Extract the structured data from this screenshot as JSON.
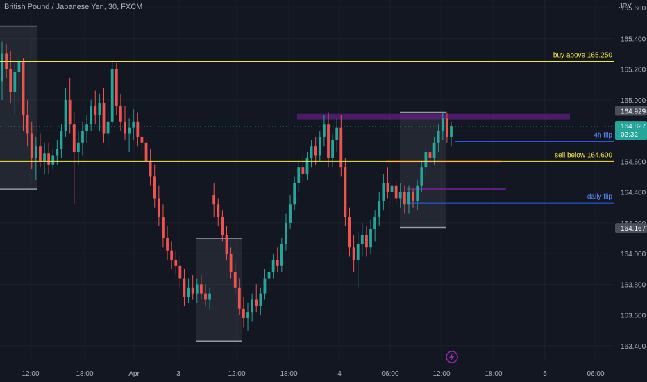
{
  "header": {
    "symbol_title": "British Pound / Japanese Yen, 30, FXCM",
    "currency": "JPY"
  },
  "colors": {
    "background": "#131722",
    "grid": "#1e222d",
    "up": "#26a69a",
    "down": "#ef5350",
    "yellow_line": "#f5e640",
    "blue_line": "#2962ff",
    "purple_zone": "#7b1fa2",
    "axis_text": "#b2b5be"
  },
  "chart_data": {
    "type": "candlestick",
    "timeframe": "30",
    "ylim": [
      163.3,
      165.65
    ],
    "y_ticks": [
      "165.600",
      "165.400",
      "165.200",
      "165.000",
      "164.800",
      "164.600",
      "164.400",
      "164.200",
      "164.000",
      "163.800",
      "163.600",
      "163.400"
    ],
    "x_ticks": [
      "12:00",
      "18:00",
      "Apr",
      "3",
      "12:00",
      "18:00",
      "4",
      "06:00",
      "12:00",
      "18:00",
      "5",
      "06:00"
    ],
    "price_labels": {
      "high_marker": "164.929",
      "current_price": "164.827",
      "countdown": "02:32",
      "low_marker": "164.167"
    },
    "levels": [
      {
        "label": "buy above 165.250",
        "price": 165.25,
        "color": "yellow"
      },
      {
        "label": "sell below 164.600",
        "price": 164.6,
        "color": "yellow"
      },
      {
        "label": "4h flip",
        "price": 164.73,
        "color": "blue"
      },
      {
        "label": "daily flip",
        "price": 164.33,
        "color": "blue"
      }
    ],
    "zones": [
      {
        "kind": "purple-resistance",
        "low": 164.87,
        "high": 164.91
      },
      {
        "kind": "purple-thin",
        "price": 164.42
      },
      {
        "kind": "red-thin",
        "price": 164.6
      }
    ],
    "range_boxes": [
      {
        "high": 165.48,
        "low": 164.42
      },
      {
        "high": 164.1,
        "low": 163.43
      },
      {
        "high": 164.92,
        "low": 164.17
      }
    ],
    "candles": [
      [
        165.12,
        165.38,
        165.0,
        165.3
      ],
      [
        165.3,
        165.36,
        165.14,
        165.2
      ],
      [
        165.2,
        165.32,
        164.98,
        165.05
      ],
      [
        165.05,
        165.24,
        164.9,
        165.18
      ],
      [
        165.18,
        165.28,
        165.0,
        165.25
      ],
      [
        165.25,
        165.27,
        164.8,
        164.9
      ],
      [
        164.9,
        165.0,
        164.7,
        164.78
      ],
      [
        164.78,
        164.86,
        164.55,
        164.62
      ],
      [
        164.62,
        164.76,
        164.48,
        164.7
      ],
      [
        164.7,
        164.78,
        164.56,
        164.6
      ],
      [
        164.6,
        164.72,
        164.52,
        164.65
      ],
      [
        164.65,
        164.72,
        164.52,
        164.58
      ],
      [
        164.58,
        164.68,
        164.55,
        164.64
      ],
      [
        164.64,
        164.74,
        164.58,
        164.68
      ],
      [
        164.68,
        164.84,
        164.62,
        164.8
      ],
      [
        164.8,
        165.08,
        164.76,
        165.0
      ],
      [
        165.0,
        165.14,
        164.78,
        164.84
      ],
      [
        164.84,
        164.92,
        164.32,
        164.66
      ],
      [
        164.66,
        164.8,
        164.58,
        164.72
      ],
      [
        164.72,
        164.86,
        164.64,
        164.8
      ],
      [
        164.8,
        164.9,
        164.72,
        164.84
      ],
      [
        164.84,
        165.0,
        164.8,
        164.96
      ],
      [
        164.96,
        165.06,
        164.84,
        164.9
      ],
      [
        164.9,
        165.04,
        164.8,
        164.98
      ],
      [
        164.98,
        165.08,
        164.72,
        164.78
      ],
      [
        164.78,
        164.92,
        164.68,
        164.86
      ],
      [
        164.86,
        165.26,
        164.84,
        165.2
      ],
      [
        165.2,
        165.24,
        164.9,
        164.96
      ],
      [
        164.96,
        165.04,
        164.8,
        164.86
      ],
      [
        164.86,
        164.96,
        164.74,
        164.78
      ],
      [
        164.78,
        164.88,
        164.66,
        164.82
      ],
      [
        164.82,
        164.94,
        164.74,
        164.86
      ],
      [
        164.86,
        164.92,
        164.7,
        164.76
      ],
      [
        164.76,
        164.84,
        164.64,
        164.72
      ],
      [
        164.72,
        164.8,
        164.56,
        164.6
      ],
      [
        164.6,
        164.68,
        164.44,
        164.5
      ],
      [
        164.5,
        164.58,
        164.3,
        164.36
      ],
      [
        164.36,
        164.44,
        164.18,
        164.24
      ],
      [
        164.24,
        164.32,
        164.04,
        164.1
      ],
      [
        164.1,
        164.18,
        163.96,
        164.02
      ],
      [
        164.02,
        164.08,
        163.9,
        163.96
      ],
      [
        163.96,
        164.02,
        163.86,
        163.92
      ],
      [
        163.92,
        163.98,
        163.78,
        163.84
      ],
      [
        163.84,
        163.9,
        163.66,
        163.72
      ],
      [
        163.72,
        163.84,
        163.68,
        163.78
      ],
      [
        163.78,
        163.86,
        163.7,
        163.74
      ],
      [
        163.74,
        163.84,
        163.68,
        163.8
      ],
      [
        163.8,
        163.86,
        163.7,
        163.74
      ],
      [
        163.74,
        163.8,
        163.66,
        163.7
      ],
      [
        163.7,
        163.78,
        163.64,
        163.74
      ],
      [
        164.38,
        164.46,
        164.24,
        164.32
      ],
      [
        164.32,
        164.36,
        164.18,
        164.24
      ],
      [
        164.24,
        164.28,
        164.08,
        164.12
      ],
      [
        164.12,
        164.18,
        163.96,
        164.0
      ],
      [
        164.0,
        164.04,
        163.84,
        163.88
      ],
      [
        163.88,
        163.94,
        163.74,
        163.78
      ],
      [
        163.78,
        163.84,
        163.6,
        163.64
      ],
      [
        163.64,
        163.72,
        163.52,
        163.58
      ],
      [
        163.58,
        163.68,
        163.5,
        163.62
      ],
      [
        163.62,
        163.74,
        163.56,
        163.7
      ],
      [
        163.7,
        163.8,
        163.62,
        163.66
      ],
      [
        163.66,
        163.78,
        163.6,
        163.74
      ],
      [
        163.74,
        163.9,
        163.7,
        163.84
      ],
      [
        163.84,
        163.94,
        163.78,
        163.88
      ],
      [
        163.88,
        164.0,
        163.84,
        163.96
      ],
      [
        163.96,
        164.04,
        163.88,
        163.92
      ],
      [
        163.92,
        164.1,
        163.88,
        164.06
      ],
      [
        164.06,
        164.26,
        164.02,
        164.2
      ],
      [
        164.2,
        164.38,
        164.16,
        164.32
      ],
      [
        164.32,
        164.5,
        164.28,
        164.46
      ],
      [
        164.46,
        164.6,
        164.4,
        164.56
      ],
      [
        164.56,
        164.64,
        164.46,
        164.52
      ],
      [
        164.52,
        164.66,
        164.48,
        164.62
      ],
      [
        164.62,
        164.74,
        164.56,
        164.7
      ],
      [
        164.7,
        164.76,
        164.58,
        164.64
      ],
      [
        164.64,
        164.8,
        164.6,
        164.76
      ],
      [
        164.76,
        164.9,
        164.7,
        164.84
      ],
      [
        164.84,
        164.92,
        164.56,
        164.62
      ],
      [
        164.62,
        164.78,
        164.56,
        164.74
      ],
      [
        164.74,
        164.88,
        164.66,
        164.82
      ],
      [
        164.82,
        164.9,
        164.5,
        164.56
      ],
      [
        164.56,
        164.62,
        164.18,
        164.24
      ],
      [
        164.24,
        164.3,
        163.98,
        164.04
      ],
      [
        164.04,
        164.12,
        163.88,
        163.96
      ],
      [
        163.96,
        164.14,
        163.78,
        164.06
      ],
      [
        164.06,
        164.2,
        163.98,
        164.12
      ],
      [
        164.12,
        164.18,
        163.98,
        164.04
      ],
      [
        164.04,
        164.22,
        164.0,
        164.16
      ],
      [
        164.16,
        164.28,
        164.08,
        164.24
      ],
      [
        164.24,
        164.4,
        164.18,
        164.34
      ],
      [
        164.34,
        164.52,
        164.28,
        164.46
      ],
      [
        164.46,
        164.56,
        164.36,
        164.4
      ],
      [
        164.4,
        164.48,
        164.3,
        164.44
      ],
      [
        164.44,
        164.48,
        164.32,
        164.36
      ],
      [
        164.36,
        164.46,
        164.3,
        164.4
      ],
      [
        164.4,
        164.44,
        164.26,
        164.32
      ],
      [
        164.32,
        164.44,
        164.26,
        164.4
      ],
      [
        164.4,
        164.42,
        164.3,
        164.34
      ],
      [
        164.34,
        164.48,
        164.28,
        164.44
      ],
      [
        164.44,
        164.6,
        164.4,
        164.56
      ],
      [
        164.56,
        164.7,
        164.5,
        164.66
      ],
      [
        164.66,
        164.72,
        164.56,
        164.62
      ],
      [
        164.62,
        164.76,
        164.58,
        164.72
      ],
      [
        164.72,
        164.84,
        164.66,
        164.8
      ],
      [
        164.8,
        164.92,
        164.74,
        164.88
      ],
      [
        164.88,
        164.92,
        164.72,
        164.76
      ],
      [
        164.76,
        164.86,
        164.7,
        164.83
      ]
    ]
  }
}
